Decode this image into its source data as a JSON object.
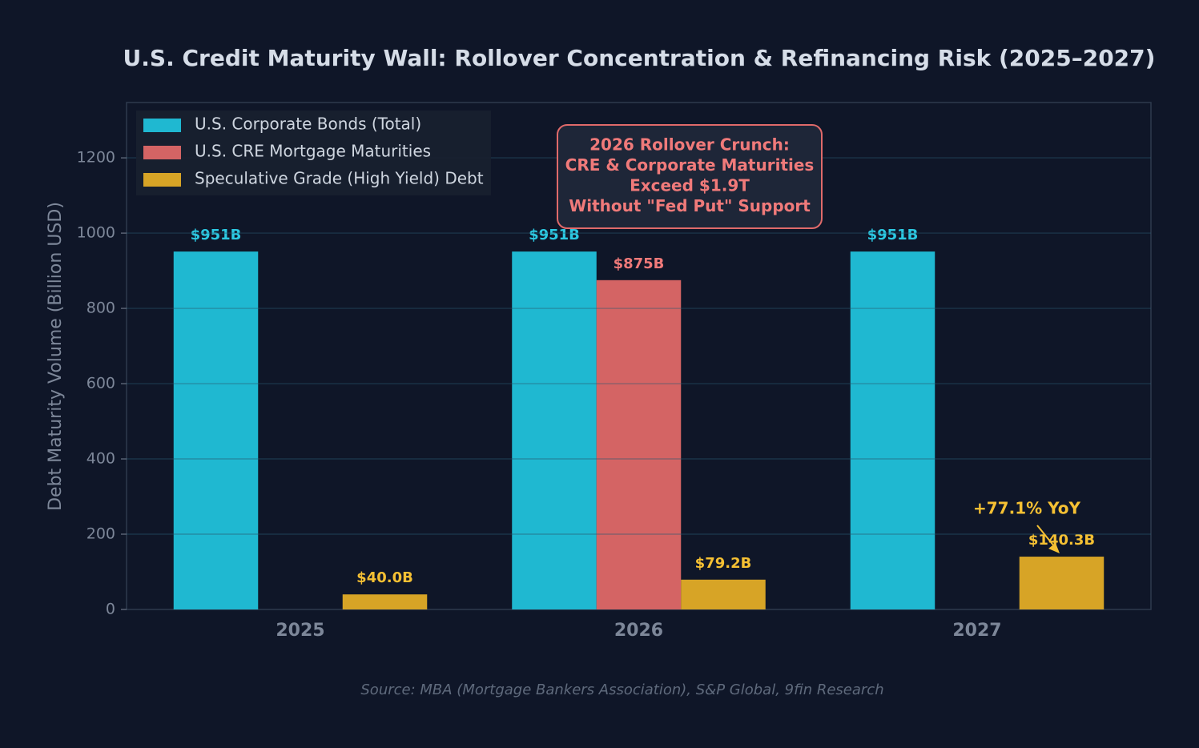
{
  "chart_data": {
    "type": "bar",
    "title": "U.S. Credit Maturity Wall: Rollover Concentration & Refinancing Risk (2025–2027)",
    "y_label": "Debt Maturity Volume (Billion USD)",
    "source": "Source: MBA (Mortgage Bankers Association), S&P Global, 9fin Research",
    "categories": [
      "2025",
      "2026",
      "2027"
    ],
    "series": [
      {
        "name": "U.S. Corporate Bonds (Total)",
        "color": "#1fb8d1",
        "label_color": "#2cc9e2",
        "values": [
          951,
          951,
          951
        ],
        "value_labels": [
          "$951B",
          "$951B",
          "$951B"
        ]
      },
      {
        "name": "U.S. CRE Mortgage Maturities",
        "color": "#d46464",
        "label_color": "#f07a7a",
        "values": [
          null,
          875,
          null
        ],
        "value_labels": [
          null,
          "$875B",
          null
        ]
      },
      {
        "name": "Speculative Grade (High Yield) Debt",
        "color": "#d7a426",
        "label_color": "#f5c033",
        "values": [
          40.0,
          79.2,
          140.3
        ],
        "value_labels": [
          "$40.0B",
          "$79.2B",
          "$140.3B"
        ]
      }
    ],
    "ylim": [
      0,
      1347
    ],
    "yticks": [
      0,
      200,
      400,
      600,
      800,
      1000,
      1200
    ],
    "grid": true,
    "legend": "upper left",
    "callout": [
      "2026 Rollover Crunch:",
      "CRE & Corporate Maturities",
      "Exceed $1.9T",
      "Without \"Fed Put\" Support"
    ],
    "annotation": "+77.1% YoY"
  }
}
